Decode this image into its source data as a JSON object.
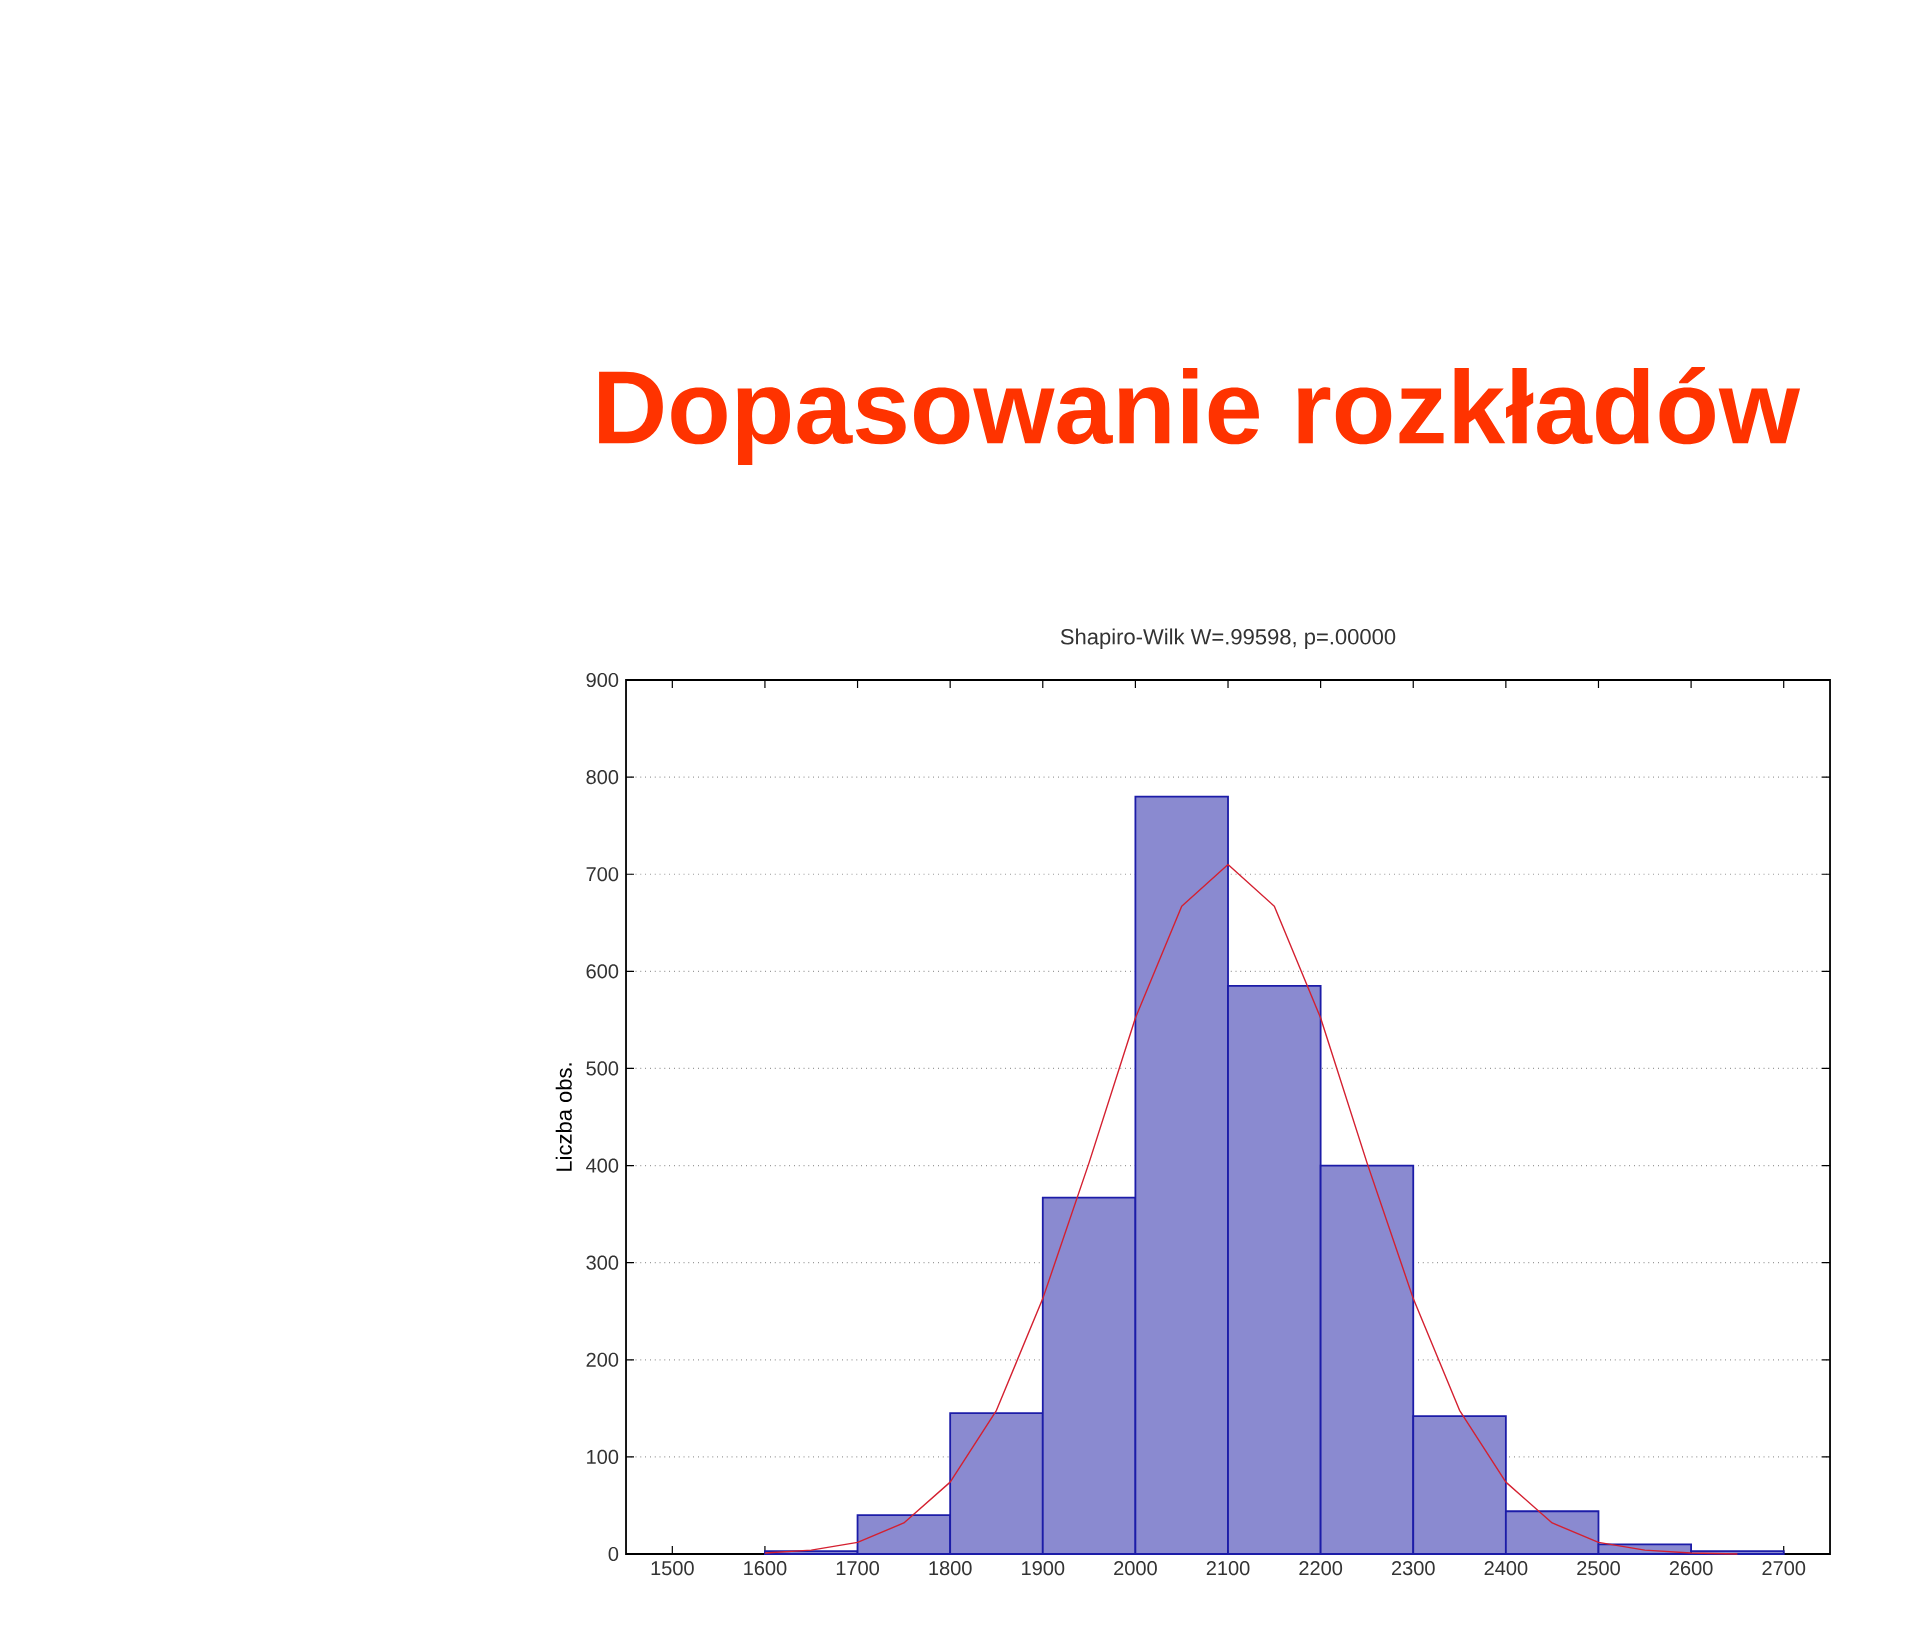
{
  "chart_data": {
    "type": "histogram",
    "title": "Dopasowanie rozkładów",
    "subtitle": "Shapiro-Wilk W=.99598, p=.00000",
    "ylabel": "Liczba obs.",
    "series": [
      {
        "color": "#8a8ad0",
        "bins": [
          1600,
          1700,
          1800,
          1900,
          2000,
          2100,
          2200,
          2300,
          2400,
          2500,
          2600,
          2700
        ],
        "values": [
          3,
          40,
          145,
          367,
          780,
          585,
          400,
          142,
          44,
          10,
          3
        ]
      },
      {
        "type": "line",
        "marker": "none",
        "color": "#d42030",
        "x": [
          1600,
          1650,
          1700,
          1750,
          1800,
          1850,
          1900,
          1950,
          2000,
          2050,
          2100,
          2150,
          2200,
          2250,
          2300,
          2350,
          2400,
          2450,
          2500,
          2550,
          2600,
          2650
        ],
        "values": [
          1,
          4,
          12,
          32,
          74,
          148,
          263,
          403,
          552,
          667,
          710,
          667,
          552,
          403,
          263,
          148,
          74,
          32,
          12,
          4,
          1,
          0
        ]
      }
    ],
    "xlim": [
      1450,
      2750
    ],
    "ylim": [
      0,
      900
    ],
    "xticks": [
      1500,
      1600,
      1700,
      1800,
      1900,
      2000,
      2100,
      2200,
      2300,
      2400,
      2500,
      2600,
      2700
    ],
    "yticks": [
      0,
      100,
      200,
      300,
      400,
      500,
      600,
      700,
      800,
      900
    ],
    "grid": "y"
  }
}
